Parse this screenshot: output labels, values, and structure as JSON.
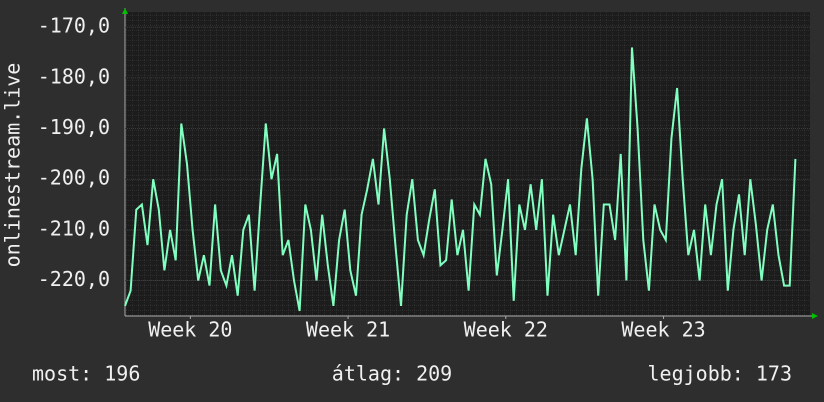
{
  "chart_data": {
    "type": "line",
    "y_label": "onlinestream.live",
    "x": [
      0,
      0.25,
      0.5,
      0.75,
      1,
      1.25,
      1.5,
      1.75,
      2,
      2.25,
      2.5,
      2.75,
      3,
      3.25,
      3.5,
      3.75,
      4,
      4.25,
      4.5,
      4.75,
      5,
      5.25,
      5.5,
      5.75,
      6,
      6.25,
      6.5,
      6.75,
      7,
      7.25,
      7.5,
      7.75,
      8,
      8.25,
      8.5,
      8.75,
      9,
      9.25,
      9.5,
      9.75,
      10,
      10.25,
      10.5,
      10.75,
      11,
      11.25,
      11.5,
      11.75,
      12,
      12.25,
      12.5,
      12.75,
      13,
      13.25,
      13.5,
      13.75,
      14,
      14.25,
      14.5,
      14.75,
      15,
      15.25,
      15.5,
      15.75,
      16,
      16.25,
      16.5,
      16.75,
      17,
      17.25,
      17.5,
      17.75,
      18,
      18.25,
      18.5,
      18.75,
      19,
      19.25,
      19.5,
      19.75,
      20,
      20.25,
      20.5,
      20.75,
      21,
      21.25,
      21.5,
      21.75,
      22,
      22.25,
      22.5,
      22.75,
      23,
      23.25,
      23.5,
      23.75,
      24,
      24.25,
      24.5,
      24.75,
      25,
      25.25,
      25.5,
      25.75,
      26,
      26.25,
      26.5,
      26.75,
      27,
      27.25,
      27.5,
      27.75,
      28,
      28.25,
      28.5,
      28.75,
      29,
      29.25,
      29.5,
      29.75
    ],
    "series": [
      {
        "name": "onlinestream.live",
        "color": "#80ffc0",
        "values": [
          -225,
          -222,
          -206,
          -205,
          -213,
          -200,
          -206,
          -218,
          -210,
          -216,
          -189,
          -197,
          -210,
          -220,
          -215,
          -221,
          -205,
          -218,
          -221,
          -215,
          -223,
          -210,
          -207,
          -222,
          -205,
          -189,
          -200,
          -195,
          -215,
          -212,
          -220,
          -226,
          -205,
          -210,
          -220,
          -207,
          -217,
          -225,
          -212,
          -206,
          -218,
          -223,
          -207,
          -202,
          -196,
          -205,
          -190,
          -200,
          -213,
          -225,
          -207,
          -200,
          -212,
          -215,
          -208,
          -202,
          -217,
          -216,
          -204,
          -215,
          -210,
          -222,
          -205,
          -207,
          -196,
          -201,
          -219,
          -210,
          -200,
          -224,
          -205,
          -210,
          -201,
          -210,
          -200,
          -223,
          -207,
          -215,
          -210,
          -205,
          -215,
          -198,
          -188,
          -200,
          -223,
          -205,
          -205,
          -212,
          -195,
          -220,
          -174,
          -190,
          -212,
          -222,
          -205,
          -210,
          -212,
          -192,
          -182,
          -200,
          -215,
          -210,
          -220,
          -205,
          -215,
          -205,
          -200,
          -222,
          -210,
          -203,
          -215,
          -200,
          -209,
          -220,
          -210,
          -205,
          -215,
          -221,
          -221,
          -196
        ]
      }
    ],
    "xlim": [
      0,
      30.4
    ],
    "xticks": [
      {
        "value": 2.9,
        "label": "Week 20"
      },
      {
        "value": 9.9,
        "label": "Week 21"
      },
      {
        "value": 16.9,
        "label": "Week 22"
      },
      {
        "value": 23.9,
        "label": "Week 23"
      }
    ],
    "ylim": [
      -227,
      -167
    ],
    "yticks": [
      {
        "value": -220,
        "label": "-220,0"
      },
      {
        "value": -210,
        "label": "-210,0"
      },
      {
        "value": -200,
        "label": "-200,0"
      },
      {
        "value": -190,
        "label": "-190,0"
      },
      {
        "value": -180,
        "label": "-180,0"
      },
      {
        "value": -170,
        "label": "-170,0"
      }
    ],
    "grid": true,
    "footer": {
      "current": "most: 196",
      "average": "átlag: 209",
      "best": "legjobb: 173"
    }
  }
}
